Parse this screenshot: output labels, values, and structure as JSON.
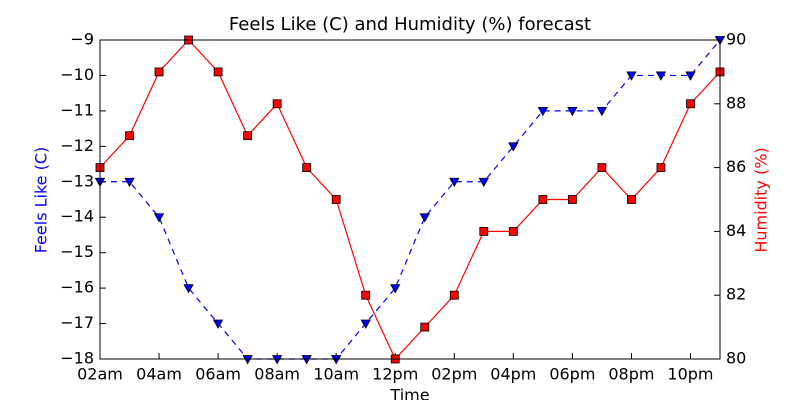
{
  "chart_data": {
    "type": "line",
    "title": "Feels Like (C) and Humidity (%) forecast",
    "xlabel": "Time",
    "ylabel": "Feels Like (C)",
    "y2label": "Humidity (%)",
    "categories": [
      "02am",
      null,
      "04am",
      null,
      "06am",
      null,
      "08am",
      null,
      "10am",
      null,
      "12pm",
      null,
      "02pm",
      null,
      "04pm",
      null,
      "06pm",
      null,
      "08pm",
      null,
      "10pm",
      null
    ],
    "series": [
      {
        "name": "Feels Like (C)",
        "color": "#0000ff",
        "marker": "triangle-down",
        "dash": true,
        "axis": "y",
        "values": [
          -13,
          -13,
          -14,
          -16,
          -17,
          -18,
          -18,
          -18,
          -18,
          -17,
          -16,
          -14,
          -13,
          -13,
          -12,
          -11,
          -11,
          -11,
          -10,
          -10,
          -10,
          -9
        ]
      },
      {
        "name": "Humidity (%)",
        "color": "#ff0000",
        "marker": "square",
        "dash": false,
        "axis": "y2",
        "values": [
          86,
          87,
          89,
          90,
          89,
          87,
          88,
          86,
          85,
          82,
          80,
          81,
          82,
          84,
          84,
          85,
          85,
          86,
          85,
          86,
          88,
          89
        ]
      }
    ],
    "ylim": [
      -18,
      -9
    ],
    "yticks": [
      {
        "value": -18,
        "label": "−18"
      },
      {
        "value": -17,
        "label": "−17"
      },
      {
        "value": -16,
        "label": "−16"
      },
      {
        "value": -15,
        "label": "−15"
      },
      {
        "value": -14,
        "label": "−14"
      },
      {
        "value": -13,
        "label": "−13"
      },
      {
        "value": -12,
        "label": "−12"
      },
      {
        "value": -11,
        "label": "−11"
      },
      {
        "value": -10,
        "label": "−10"
      },
      {
        "value": -9,
        "label": "−9"
      }
    ],
    "y2lim": [
      80,
      90
    ],
    "y2ticks": [
      80,
      82,
      84,
      86,
      88,
      90
    ]
  }
}
